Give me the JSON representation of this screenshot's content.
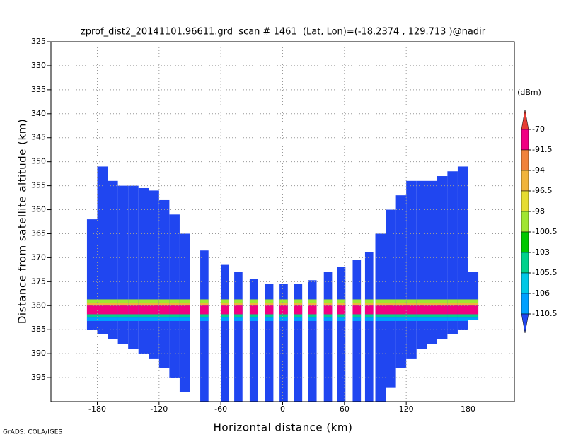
{
  "chart_data": {
    "type": "profile",
    "title": "zprof_dist2_20141101.96611.grd  scan # 1461  (Lat, Lon)=(-18.2374 , 129.713 )@nadir",
    "xlabel": "Horizontal distance (km)",
    "ylabel": "Distance from satellite altitude (km)",
    "credit": "GrADS: COLA/IGES",
    "xlim": [
      -225,
      225
    ],
    "ylim": [
      400,
      325
    ],
    "xticks": [
      -180,
      -120,
      -60,
      0,
      60,
      120,
      180
    ],
    "yticks": [
      325,
      330,
      335,
      340,
      345,
      350,
      355,
      360,
      365,
      370,
      375,
      380,
      385,
      390,
      395
    ],
    "grid": true,
    "colorbar": {
      "unit": "(dBm)",
      "levels": [
        -70,
        -91.5,
        -94,
        -96.5,
        -98,
        -100.5,
        -103,
        -105.5,
        -106,
        -110.5
      ],
      "colors": [
        "#e63c32",
        "#f00082",
        "#f0823c",
        "#f0b43c",
        "#e6dc32",
        "#a0e632",
        "#00c800",
        "#00d28c",
        "#00c8e6",
        "#00a0ff",
        "#2046f0"
      ]
    },
    "field": {
      "base_value": -112,
      "columns": [
        {
          "x": -185,
          "width": 10,
          "top": 362,
          "bottom": 385
        },
        {
          "x": -175,
          "width": 10,
          "top": 351,
          "bottom": 386
        },
        {
          "x": -165,
          "width": 10,
          "top": 354,
          "bottom": 387
        },
        {
          "x": -155,
          "width": 10,
          "top": 355,
          "bottom": 388
        },
        {
          "x": -145,
          "width": 10,
          "top": 355,
          "bottom": 389
        },
        {
          "x": -135,
          "width": 10,
          "top": 355.5,
          "bottom": 390
        },
        {
          "x": -125,
          "width": 10,
          "top": 356,
          "bottom": 391
        },
        {
          "x": -115,
          "width": 10,
          "top": 358,
          "bottom": 393
        },
        {
          "x": -105,
          "width": 10,
          "top": 361,
          "bottom": 395
        },
        {
          "x": -95,
          "width": 10,
          "top": 365,
          "bottom": 398
        },
        {
          "x": -76,
          "width": 8,
          "top": 368.5,
          "bottom": 400
        },
        {
          "x": -56,
          "width": 8,
          "top": 371.5,
          "bottom": 400
        },
        {
          "x": -43,
          "width": 8,
          "top": 373,
          "bottom": 400
        },
        {
          "x": -28,
          "width": 8,
          "top": 374.4,
          "bottom": 400
        },
        {
          "x": -13,
          "width": 8,
          "top": 375.4,
          "bottom": 400
        },
        {
          "x": 1,
          "width": 8,
          "top": 375.5,
          "bottom": 400
        },
        {
          "x": 15,
          "width": 8,
          "top": 375.4,
          "bottom": 400
        },
        {
          "x": 29,
          "width": 8,
          "top": 374.7,
          "bottom": 400
        },
        {
          "x": 44,
          "width": 8,
          "top": 373,
          "bottom": 400
        },
        {
          "x": 57,
          "width": 8,
          "top": 372,
          "bottom": 400
        },
        {
          "x": 72,
          "width": 8,
          "top": 370.5,
          "bottom": 400
        },
        {
          "x": 84,
          "width": 8,
          "top": 368.8,
          "bottom": 400
        },
        {
          "x": 95,
          "width": 10,
          "top": 365,
          "bottom": 400
        },
        {
          "x": 105,
          "width": 10,
          "top": 360,
          "bottom": 397
        },
        {
          "x": 115,
          "width": 10,
          "top": 357,
          "bottom": 393
        },
        {
          "x": 125,
          "width": 10,
          "top": 354,
          "bottom": 391
        },
        {
          "x": 135,
          "width": 10,
          "top": 354,
          "bottom": 389
        },
        {
          "x": 145,
          "width": 10,
          "top": 354,
          "bottom": 388
        },
        {
          "x": 155,
          "width": 10,
          "top": 353,
          "bottom": 387
        },
        {
          "x": 165,
          "width": 10,
          "top": 352,
          "bottom": 386
        },
        {
          "x": 175,
          "width": 10,
          "top": 351,
          "bottom": 385
        },
        {
          "x": 185,
          "width": 10,
          "top": 373,
          "bottom": 383
        }
      ],
      "layers": [
        {
          "value": -99,
          "top": 378.7,
          "bottom": 379.4
        },
        {
          "value": -95,
          "top": 379.4,
          "bottom": 380.0
        },
        {
          "value": -80,
          "top": 380.0,
          "bottom": 381.8
        },
        {
          "value": -104,
          "top": 381.8,
          "bottom": 382.5
        },
        {
          "value": -107,
          "top": 382.5,
          "bottom": 383.2
        }
      ]
    }
  }
}
